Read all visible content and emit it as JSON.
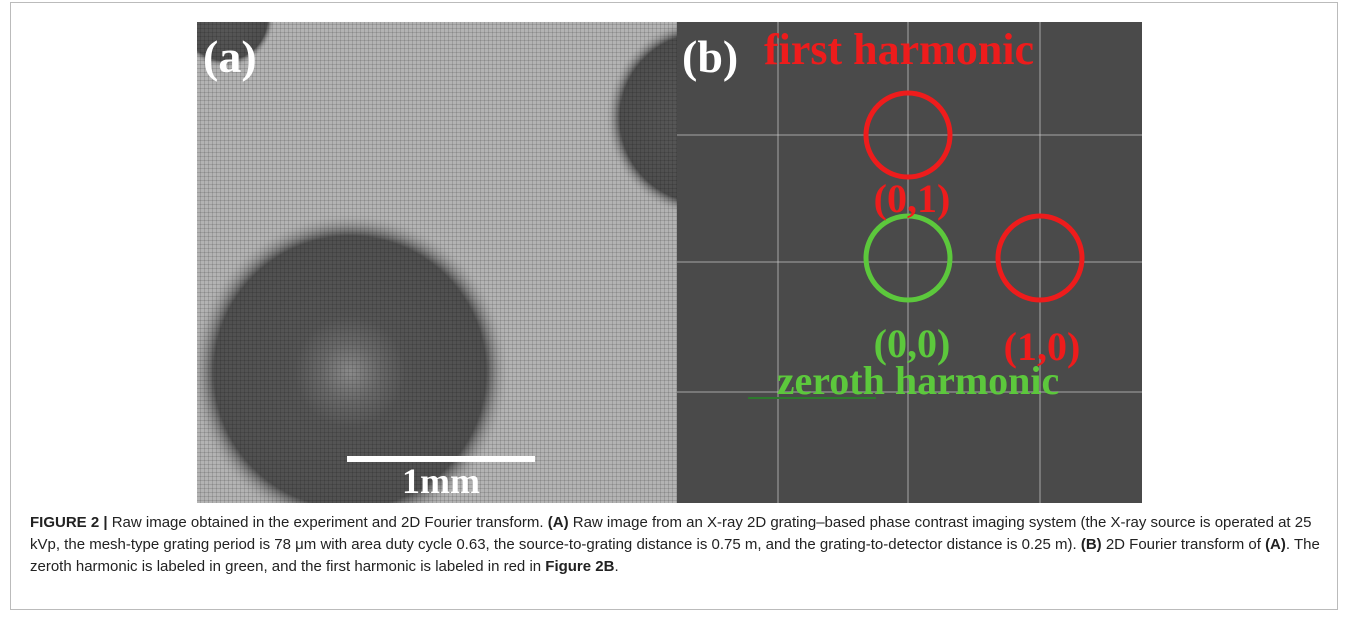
{
  "figure": {
    "panel_a": {
      "label": "(a)",
      "scale_bar": "1mm"
    },
    "panel_b": {
      "label": "(b)",
      "first_harmonic": "first harmonic",
      "zeroth_harmonic": "zeroth harmonic",
      "orders": [
        "(0,1)",
        "(0,0)",
        "(1,0)"
      ]
    },
    "caption": [
      {
        "text": "FIGURE 2 |",
        "bold": true
      },
      {
        "text": " Raw image obtained in the experiment and 2D Fourier transform. ",
        "bold": false
      },
      {
        "text": "(A)",
        "bold": true
      },
      {
        "text": " Raw image from an X-ray 2D grating–based phase contrast imaging system (the X-ray source is operated at 25 kVp, the mesh-type grating period is 78 μm with area duty cycle 0.63, the source-to-grating distance is 0.75 m, and the grating-to-detector distance is 0.25 m). ",
        "bold": false
      },
      {
        "text": "(B)",
        "bold": true
      },
      {
        "text": " 2D Fourier transform of ",
        "bold": false
      },
      {
        "text": "(A)",
        "bold": true
      },
      {
        "text": ". The zeroth harmonic is labeled in green, and the first harmonic is labeled in red in ",
        "bold": false
      },
      {
        "text": "Figure 2B",
        "bold": true
      },
      {
        "text": ".",
        "bold": false
      }
    ]
  }
}
